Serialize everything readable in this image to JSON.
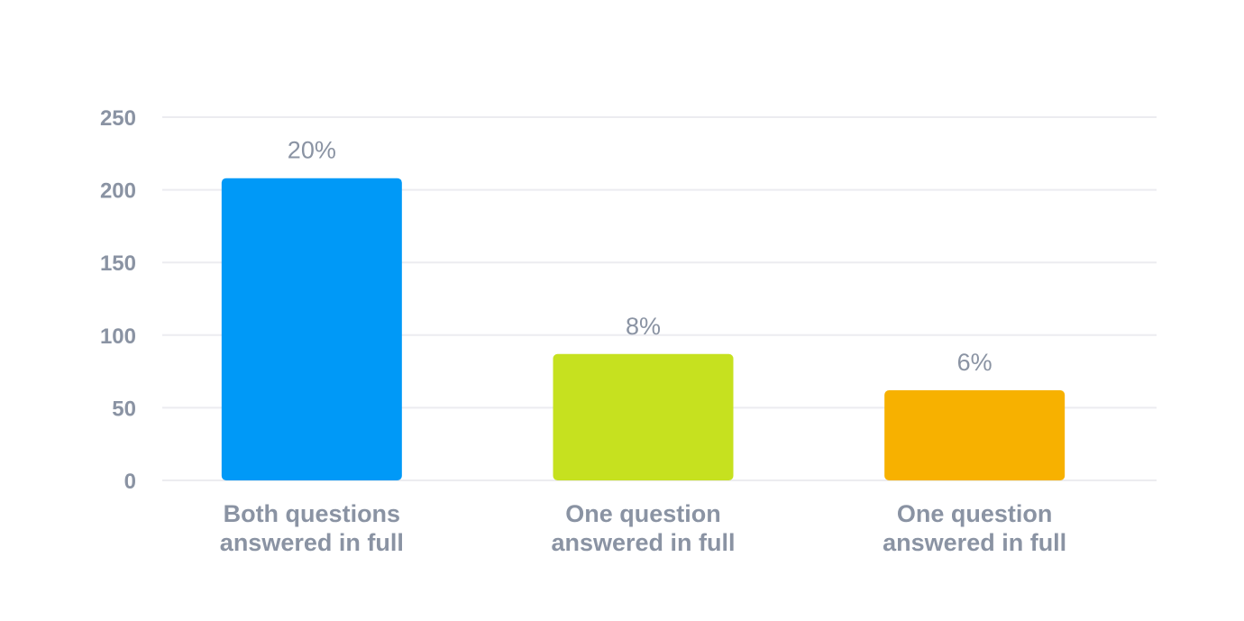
{
  "chart_data": {
    "type": "bar",
    "title": "",
    "xlabel": "",
    "ylabel": "",
    "ylim": [
      0,
      250
    ],
    "yticks": [
      0,
      50,
      100,
      150,
      200,
      250
    ],
    "grid": true,
    "legend": "none",
    "categories": [
      [
        "Both questions",
        "answered in full"
      ],
      [
        "One question",
        "answered in full"
      ],
      [
        "One question",
        "answered in full"
      ]
    ],
    "values": [
      208,
      87,
      62
    ],
    "data_labels": [
      "20%",
      "8%",
      "6%"
    ],
    "colors": [
      "#0099f7",
      "#c6e11f",
      "#f7b100"
    ]
  }
}
